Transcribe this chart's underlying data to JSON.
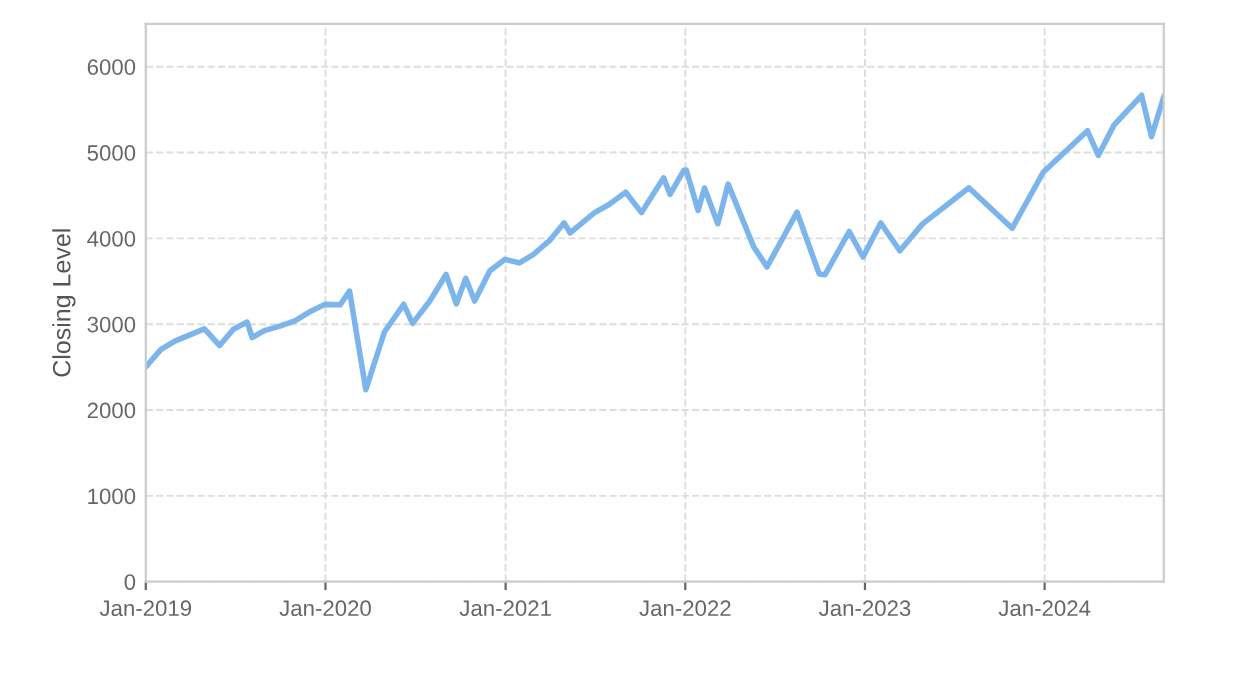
{
  "chart_data": {
    "type": "line",
    "ylabel": "Closing Level",
    "xlim": [
      "2019-01-01",
      "2024-08-30"
    ],
    "ylim": [
      0,
      6500
    ],
    "yticks": [
      0,
      1000,
      2000,
      3000,
      4000,
      5000,
      6000
    ],
    "xticks": [
      {
        "value": "2019-01",
        "label": "Jan-2019"
      },
      {
        "value": "2020-01",
        "label": "Jan-2020"
      },
      {
        "value": "2021-01",
        "label": "Jan-2021"
      },
      {
        "value": "2022-01",
        "label": "Jan-2022"
      },
      {
        "value": "2023-01",
        "label": "Jan-2023"
      },
      {
        "value": "2024-01",
        "label": "Jan-2024"
      }
    ],
    "grid": true,
    "legend": false,
    "marker": "none",
    "line_style": "solid",
    "x": [
      "2019-01-02",
      "2019-02-01",
      "2019-03-01",
      "2019-04-30",
      "2019-05-31",
      "2019-06-28",
      "2019-07-26",
      "2019-08-05",
      "2019-08-30",
      "2019-09-30",
      "2019-10-31",
      "2019-11-29",
      "2019-12-31",
      "2020-01-31",
      "2020-02-19",
      "2020-03-23",
      "2020-04-30",
      "2020-06-08",
      "2020-06-26",
      "2020-07-31",
      "2020-09-02",
      "2020-09-23",
      "2020-10-12",
      "2020-10-30",
      "2020-11-30",
      "2020-12-31",
      "2021-01-29",
      "2021-02-26",
      "2021-03-31",
      "2021-04-30",
      "2021-05-12",
      "2021-06-30",
      "2021-07-30",
      "2021-09-02",
      "2021-10-04",
      "2021-11-18",
      "2021-12-01",
      "2021-12-29",
      "2022-01-03",
      "2022-01-27",
      "2022-02-09",
      "2022-03-08",
      "2022-03-29",
      "2022-05-20",
      "2022-06-16",
      "2022-08-16",
      "2022-09-30",
      "2022-10-12",
      "2022-11-30",
      "2022-12-28",
      "2023-02-02",
      "2023-03-13",
      "2023-04-28",
      "2023-06-30",
      "2023-07-31",
      "2023-10-27",
      "2023-12-29",
      "2024-03-28",
      "2024-04-19",
      "2024-05-21",
      "2024-07-16",
      "2024-08-05",
      "2024-08-30"
    ],
    "series": [
      {
        "color": "#7cb5ec",
        "values": [
          2510,
          2706,
          2803,
          2945,
          2752,
          2942,
          3025,
          2844,
          2926,
          2977,
          3038,
          3141,
          3231,
          3226,
          3386,
          2237,
          2912,
          3232,
          3009,
          3271,
          3580,
          3237,
          3535,
          3270,
          3622,
          3756,
          3714,
          3811,
          3973,
          4181,
          4063,
          4298,
          4395,
          4537,
          4300,
          4705,
          4513,
          4793,
          4796,
          4326,
          4587,
          4171,
          4632,
          3901,
          3667,
          4305,
          3586,
          3577,
          4080,
          3783,
          4179,
          3855,
          4169,
          4450,
          4589,
          4117,
          4770,
          5254,
          4967,
          5321,
          5667,
          5186,
          5648
        ]
      }
    ]
  }
}
